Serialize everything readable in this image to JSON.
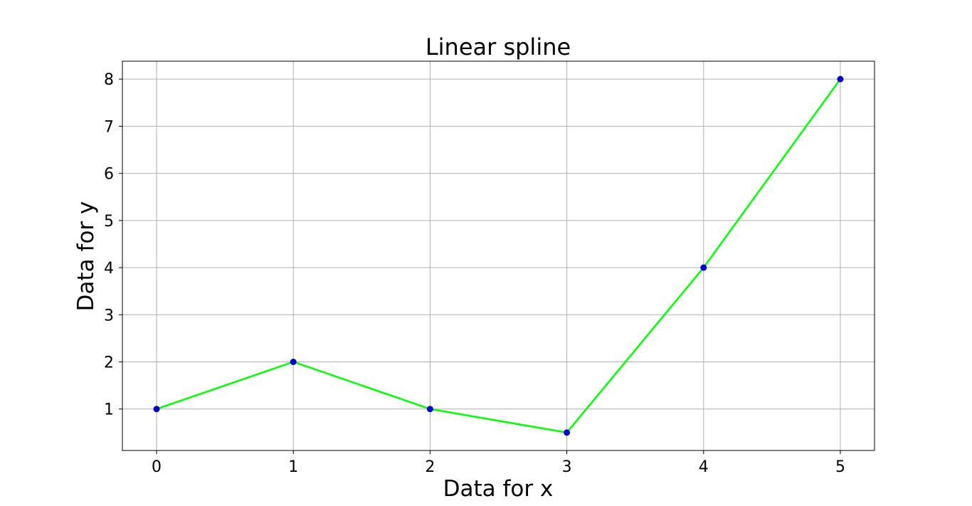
{
  "chart_data": {
    "type": "line",
    "title": "Linear spline",
    "xlabel": "Data for x",
    "ylabel": "Data for y",
    "x": [
      0,
      1,
      2,
      3,
      4,
      5
    ],
    "series": [
      {
        "values": [
          1,
          2,
          1,
          0.5,
          4,
          8
        ],
        "line_color": "#00ff00",
        "marker_color": "#0000cc"
      }
    ],
    "xlim": [
      -0.25,
      5.25
    ],
    "ylim": [
      0.12,
      8.38
    ],
    "xticks": [
      0,
      1,
      2,
      3,
      4,
      5
    ],
    "yticks": [
      1,
      2,
      3,
      4,
      5,
      6,
      7,
      8
    ],
    "grid": true,
    "legend": false
  }
}
